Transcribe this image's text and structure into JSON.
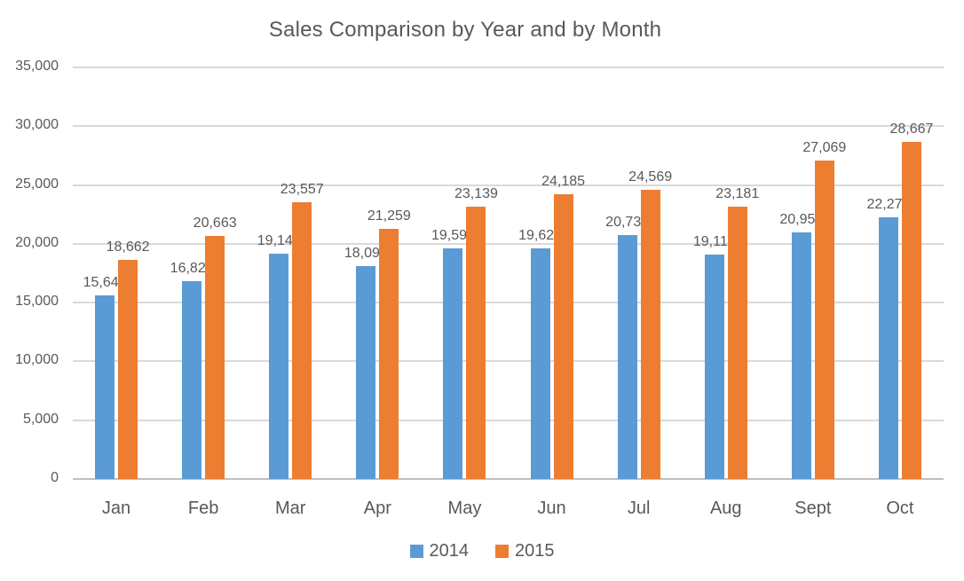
{
  "title": "Sales Comparison by Year and by Month",
  "chart_data": {
    "type": "bar",
    "title": "Sales Comparison by Year and by Month",
    "categories": [
      "Jan",
      "Feb",
      "Mar",
      "Apr",
      "May",
      "Jun",
      "Jul",
      "Aug",
      "Sept",
      "Oct"
    ],
    "series": [
      {
        "name": "2014",
        "color": "#5B9BD5",
        "values": [
          15642,
          16828,
          19143,
          18094,
          19598,
          19622,
          20730,
          19116,
          20954,
          22278
        ]
      },
      {
        "name": "2015",
        "color": "#ED7D31",
        "values": [
          18662,
          20663,
          23557,
          21259,
          23139,
          24185,
          24569,
          23181,
          27069,
          28667
        ]
      }
    ],
    "xlabel": "",
    "ylabel": "",
    "ylim": [
      0,
      35000
    ],
    "yticks": [
      0,
      5000,
      10000,
      15000,
      20000,
      25000,
      30000,
      35000
    ],
    "ytick_labels": [
      "0",
      "5,000",
      "10,000",
      "15,000",
      "20,000",
      "25,000",
      "30,000",
      "35,000"
    ],
    "grid": true,
    "data_labels": true,
    "legend_position": "bottom",
    "legend": [
      "2014",
      "2015"
    ]
  },
  "colors": {
    "series_2014": "#5B9BD5",
    "series_2015": "#ED7D31",
    "text": "#595959",
    "gridline": "#D9D9D9",
    "axis_line": "#BFBFBF",
    "background": "#FFFFFF"
  }
}
